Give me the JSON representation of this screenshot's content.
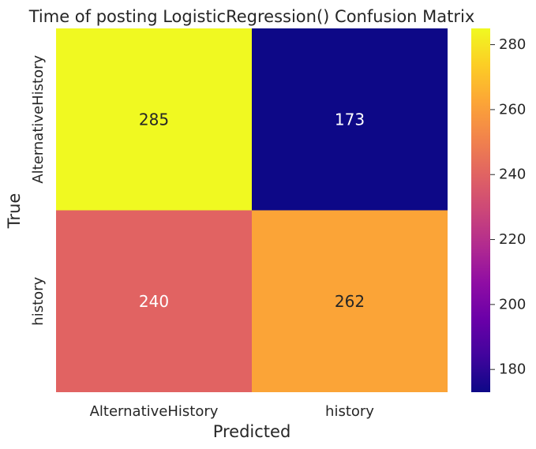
{
  "chart_data": {
    "type": "heatmap",
    "title": "Time of posting LogisticRegression() Confusion Matrix",
    "xlabel": "Predicted",
    "ylabel": "True",
    "x_categories": [
      "AlternativeHistory",
      "history"
    ],
    "y_categories": [
      "AlternativeHistory",
      "history"
    ],
    "values": [
      [
        285,
        173
      ],
      [
        240,
        262
      ]
    ],
    "colormap": "plasma",
    "colorbar": {
      "vmin": 173,
      "vmax": 285,
      "ticks": [
        180,
        200,
        220,
        240,
        260,
        280
      ]
    },
    "colors": {
      "cell_285": "#f0f921",
      "cell_173": "#0d0887",
      "cell_240": "#e16462",
      "cell_262": "#fba238"
    },
    "annotation_colors": {
      "on_light": "#262626",
      "on_dark": "#ffffff"
    }
  }
}
